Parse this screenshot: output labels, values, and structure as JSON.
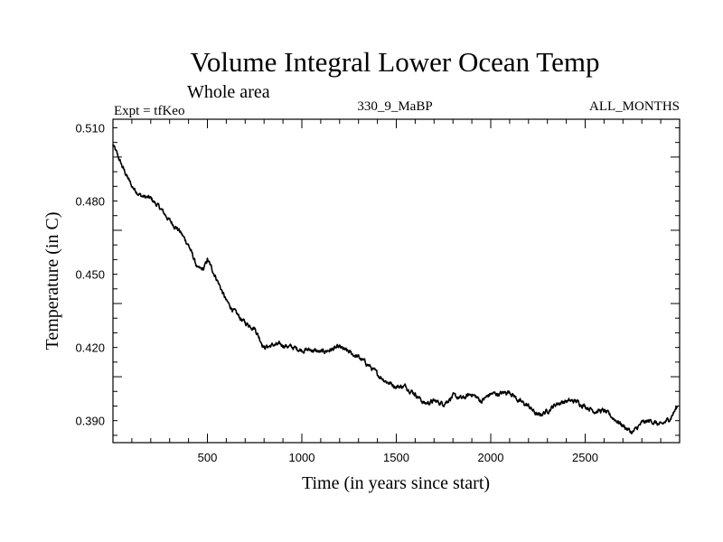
{
  "chart_data": {
    "type": "line",
    "title": "Volume Integral Lower Ocean Temp",
    "subtitle": "Whole area",
    "left_string": "Expt = tfKeo",
    "center_string": "330_9_MaBP",
    "right_string": "ALL_MONTHS",
    "xlabel": "Time (in years since start)",
    "ylabel": "Temperature (in C)",
    "xlim": [
      0,
      3000
    ],
    "ylim": [
      0.381,
      0.5135
    ],
    "x_ticks": [
      "500",
      "1000",
      "1500",
      "2000",
      "2500"
    ],
    "y_ticks": [
      "0.390",
      "0.420",
      "0.450",
      "0.480",
      "0.510"
    ],
    "grid": false,
    "series": [
      {
        "x": [
          0,
          50,
          100,
          150,
          200,
          250,
          300,
          350,
          400,
          450,
          480,
          500,
          550,
          600,
          650,
          700,
          750,
          800,
          850,
          900,
          950,
          1000,
          1050,
          1100,
          1150,
          1200,
          1250,
          1300,
          1350,
          1400,
          1450,
          1500,
          1550,
          1600,
          1650,
          1700,
          1750,
          1800,
          1850,
          1900,
          1950,
          2000,
          2050,
          2100,
          2150,
          2200,
          2250,
          2300,
          2350,
          2400,
          2450,
          2500,
          2550,
          2600,
          2650,
          2700,
          2750,
          2800,
          2850,
          2900,
          2950,
          2990
        ],
        "y": [
          0.503,
          0.494,
          0.486,
          0.482,
          0.481,
          0.477,
          0.472,
          0.468,
          0.462,
          0.452,
          0.452,
          0.456,
          0.448,
          0.439,
          0.434,
          0.43,
          0.428,
          0.42,
          0.421,
          0.421,
          0.42,
          0.419,
          0.419,
          0.418,
          0.419,
          0.42,
          0.418,
          0.416,
          0.413,
          0.409,
          0.406,
          0.404,
          0.404,
          0.401,
          0.397,
          0.398,
          0.397,
          0.4,
          0.399,
          0.401,
          0.398,
          0.401,
          0.401,
          0.402,
          0.398,
          0.396,
          0.392,
          0.394,
          0.397,
          0.398,
          0.398,
          0.396,
          0.394,
          0.394,
          0.391,
          0.388,
          0.385,
          0.389,
          0.39,
          0.388,
          0.391,
          0.396
        ]
      }
    ]
  }
}
